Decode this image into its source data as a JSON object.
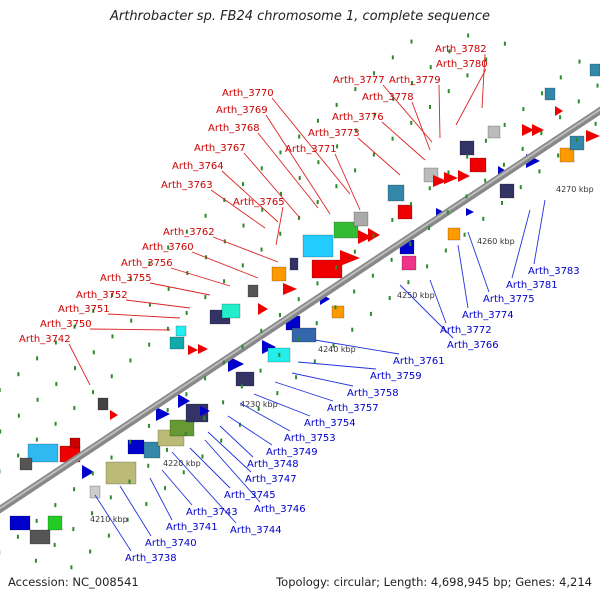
{
  "title": "Arthrobacter sp. FB24 chromosome 1, complete sequence",
  "footer": {
    "accession": "Accession: NC_008541",
    "summary": "Topology: circular; Length: 4,698,945 bp; Genes: 4,214"
  },
  "colors": {
    "top_labels": "#cc0000",
    "bottom_labels": "#0000cc",
    "backbone": "#888888",
    "tick": "#2a8a2a"
  },
  "kbp_ticks": [
    "4210 kbp",
    "4220 kbp",
    "4230 kbp",
    "4240 kbp",
    "4250 kbp",
    "4260 kbp",
    "4270 kbp"
  ],
  "top_labels": [
    "Arth_3742",
    "Arth_3750",
    "Arth_3751",
    "Arth_3752",
    "Arth_3755",
    "Arth_3756",
    "Arth_3760",
    "Arth_3762",
    "Arth_3765",
    "Arth_3763",
    "Arth_3764",
    "Arth_3767",
    "Arth_3768",
    "Arth_3769",
    "Arth_3770",
    "Arth_3771",
    "Arth_3773",
    "Arth_3776",
    "Arth_3778",
    "Arth_3777",
    "Arth_3779",
    "Arth_3780",
    "Arth_3782"
  ],
  "bottom_labels": [
    "Arth_3738",
    "Arth_3740",
    "Arth_3741",
    "Arth_3743",
    "Arth_3744",
    "Arth_3745",
    "Arth_3746",
    "Arth_3747",
    "Arth_3748",
    "Arth_3749",
    "Arth_3753",
    "Arth_3754",
    "Arth_3757",
    "Arth_3758",
    "Arth_3759",
    "Arth_3761",
    "Arth_3766",
    "Arth_3772",
    "Arth_3774",
    "Arth_3775",
    "Arth_3781",
    "Arth_3783"
  ]
}
